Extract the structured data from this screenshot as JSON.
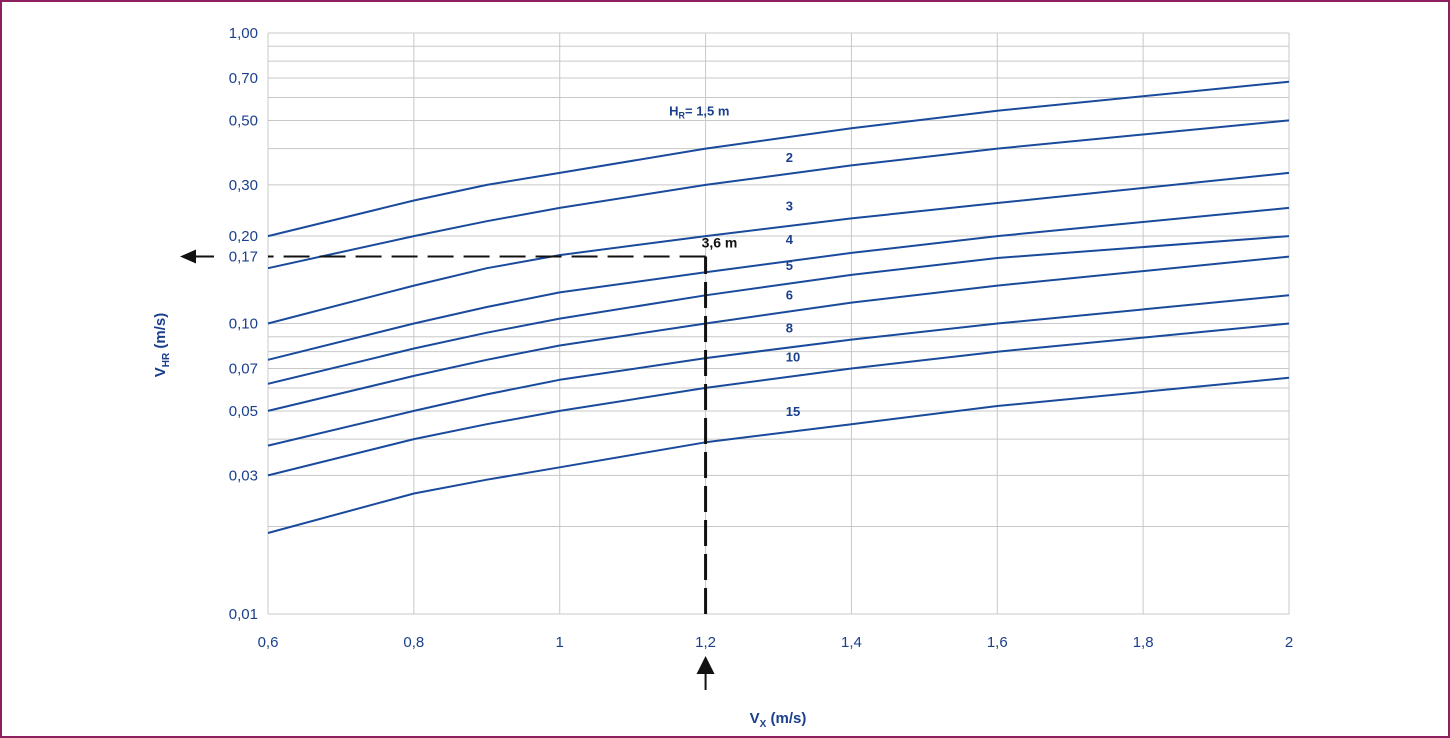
{
  "chart_data": {
    "type": "line",
    "xlabel": "Vx (m/s)",
    "ylabel": "VHR (m/s)",
    "xlim": [
      0.6,
      2.0
    ],
    "ylim": [
      0.01,
      1.0
    ],
    "y_scale": "log",
    "grid": true,
    "x_ticks": [
      {
        "value": 0.6,
        "label": "0,6"
      },
      {
        "value": 0.8,
        "label": "0,8"
      },
      {
        "value": 1.0,
        "label": "1"
      },
      {
        "value": 1.2,
        "label": "1,2"
      },
      {
        "value": 1.4,
        "label": "1,4"
      },
      {
        "value": 1.6,
        "label": "1,6"
      },
      {
        "value": 1.8,
        "label": "1,8"
      },
      {
        "value": 2.0,
        "label": "2"
      }
    ],
    "y_ticks": [
      {
        "value": 0.01,
        "label": "0,01"
      },
      {
        "value": 0.03,
        "label": "0,03"
      },
      {
        "value": 0.05,
        "label": "0,05"
      },
      {
        "value": 0.07,
        "label": "0,07"
      },
      {
        "value": 0.1,
        "label": "0,10"
      },
      {
        "value": 0.2,
        "label": "0,20"
      },
      {
        "value": 0.3,
        "label": "0,30"
      },
      {
        "value": 0.5,
        "label": "0,50"
      },
      {
        "value": 0.7,
        "label": "0,70"
      },
      {
        "value": 1.0,
        "label": "1,00"
      }
    ],
    "y_minor_grid": [
      0.02,
      0.04,
      0.06,
      0.08,
      0.09,
      0.4,
      0.6,
      0.8,
      0.9
    ],
    "series": [
      {
        "name": "HR= 1,5 m",
        "label": "HR= 1,5 m",
        "label_at": [
          1.15,
          0.52
        ],
        "x": [
          0.6,
          0.8,
          0.9,
          1.0,
          1.2,
          1.4,
          1.6,
          2.0
        ],
        "y": [
          0.2,
          0.265,
          0.3,
          0.33,
          0.4,
          0.47,
          0.54,
          0.68
        ]
      },
      {
        "name": "2",
        "label": "2",
        "label_at": [
          1.31,
          0.36
        ],
        "x": [
          0.6,
          0.8,
          0.9,
          1.0,
          1.2,
          1.4,
          1.6,
          2.0
        ],
        "y": [
          0.155,
          0.2,
          0.225,
          0.25,
          0.3,
          0.35,
          0.4,
          0.5
        ]
      },
      {
        "name": "3",
        "label": "3",
        "label_at": [
          1.31,
          0.245
        ],
        "x": [
          0.6,
          0.8,
          0.9,
          1.0,
          1.2,
          1.4,
          1.6,
          2.0
        ],
        "y": [
          0.1,
          0.135,
          0.155,
          0.172,
          0.2,
          0.23,
          0.26,
          0.33
        ]
      },
      {
        "name": "4",
        "label": "4",
        "label_at": [
          1.31,
          0.188
        ],
        "x": [
          0.6,
          0.8,
          0.9,
          1.0,
          1.2,
          1.4,
          1.6,
          2.0
        ],
        "y": [
          0.075,
          0.1,
          0.114,
          0.128,
          0.15,
          0.175,
          0.2,
          0.25
        ]
      },
      {
        "name": "5",
        "label": "5",
        "label_at": [
          1.31,
          0.153
        ],
        "x": [
          0.6,
          0.8,
          0.9,
          1.0,
          1.2,
          1.4,
          1.6,
          2.0
        ],
        "y": [
          0.062,
          0.082,
          0.093,
          0.104,
          0.125,
          0.147,
          0.168,
          0.2
        ]
      },
      {
        "name": "6",
        "label": "6",
        "label_at": [
          1.31,
          0.121
        ],
        "x": [
          0.6,
          0.8,
          0.9,
          1.0,
          1.2,
          1.4,
          1.6,
          2.0
        ],
        "y": [
          0.05,
          0.066,
          0.075,
          0.084,
          0.1,
          0.118,
          0.135,
          0.17
        ]
      },
      {
        "name": "8",
        "label": "8",
        "label_at": [
          1.31,
          0.093
        ],
        "x": [
          0.6,
          0.8,
          0.9,
          1.0,
          1.2,
          1.4,
          1.6,
          2.0
        ],
        "y": [
          0.038,
          0.05,
          0.057,
          0.064,
          0.076,
          0.088,
          0.1,
          0.125
        ]
      },
      {
        "name": "10",
        "label": "10",
        "label_at": [
          1.31,
          0.074
        ],
        "x": [
          0.6,
          0.8,
          0.9,
          1.0,
          1.2,
          1.4,
          1.6,
          2.0
        ],
        "y": [
          0.03,
          0.04,
          0.045,
          0.05,
          0.06,
          0.07,
          0.08,
          0.1
        ]
      },
      {
        "name": "15",
        "label": "15",
        "label_at": [
          1.31,
          0.048
        ],
        "x": [
          0.6,
          0.8,
          0.9,
          1.0,
          1.2,
          1.4,
          1.6,
          2.0
        ],
        "y": [
          0.019,
          0.026,
          0.029,
          0.032,
          0.039,
          0.045,
          0.052,
          0.065
        ]
      }
    ],
    "annotations": {
      "reading_x": 1.2,
      "reading_y": 0.17,
      "reading_y_label": "0,17",
      "reading_point_label": "3,6 m"
    },
    "colors": {
      "curves": "#1a4a9c",
      "text": "#1a3f8c",
      "grid": "#c8c8c8",
      "annotation": "#111111",
      "frame": "#8e2060"
    }
  }
}
